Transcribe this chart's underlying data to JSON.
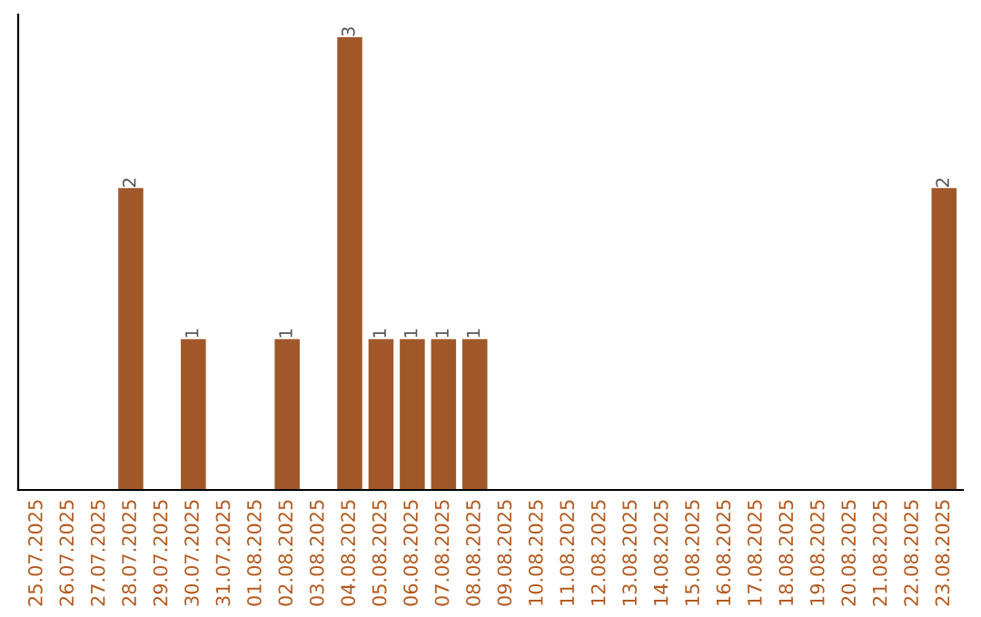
{
  "chart_data": {
    "type": "bar",
    "categories": [
      "25.07.2025",
      "26.07.2025",
      "27.07.2025",
      "28.07.2025",
      "29.07.2025",
      "30.07.2025",
      "31.07.2025",
      "01.08.2025",
      "02.08.2025",
      "03.08.2025",
      "04.08.2025",
      "05.08.2025",
      "06.08.2025",
      "07.08.2025",
      "08.08.2025",
      "09.08.2025",
      "10.08.2025",
      "11.08.2025",
      "12.08.2025",
      "13.08.2025",
      "14.08.2025",
      "15.08.2025",
      "16.08.2025",
      "17.08.2025",
      "18.08.2025",
      "19.08.2025",
      "20.08.2025",
      "21.08.2025",
      "22.08.2025",
      "23.08.2025"
    ],
    "values": [
      0,
      0,
      0,
      2,
      0,
      1,
      0,
      0,
      1,
      0,
      3,
      1,
      1,
      1,
      1,
      0,
      0,
      0,
      0,
      0,
      0,
      0,
      0,
      0,
      0,
      0,
      0,
      0,
      0,
      2
    ],
    "value_labels": [
      null,
      null,
      null,
      "2",
      null,
      "1",
      null,
      null,
      "1",
      null,
      "3",
      "1",
      "1",
      "1",
      "1",
      null,
      null,
      null,
      null,
      null,
      null,
      null,
      null,
      null,
      null,
      null,
      null,
      null,
      null,
      "2"
    ],
    "color": "#a0582a",
    "tick_labels": "x",
    "grid": false,
    "legend": false
  }
}
